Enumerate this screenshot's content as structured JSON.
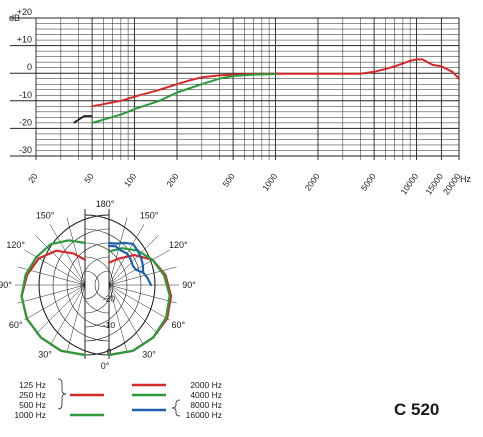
{
  "model": "C 520",
  "chart_data": [
    {
      "type": "line",
      "xscale": "log",
      "xlim": [
        20,
        20000
      ],
      "ylim": [
        -30,
        20
      ],
      "y_unit": "dB",
      "x_unit": "Hz",
      "x_tick_labels": [
        "20",
        "50",
        "100",
        "200",
        "500",
        "1000",
        "2000",
        "5000",
        "10000",
        "15000",
        "20000"
      ],
      "x_tick_values": [
        20,
        50,
        100,
        200,
        500,
        1000,
        2000,
        5000,
        10000,
        15000,
        20000
      ],
      "y_tick_labels": [
        "+20",
        "+10",
        "0",
        "-10",
        "-20",
        "-30"
      ],
      "y_tick_values": [
        20,
        10,
        0,
        -10,
        -20,
        -30
      ],
      "grid": true,
      "series": [
        {
          "color": "#d42a2a",
          "x": [
            50,
            80,
            100,
            150,
            200,
            250,
            300,
            400,
            500,
            700,
            1000,
            2000,
            3000,
            4000,
            5000,
            6000,
            7000,
            8000,
            9000,
            10000,
            11000,
            12000,
            13000,
            15000,
            18000,
            20000
          ],
          "y": [
            -12,
            -10,
            -8.5,
            -6,
            -4,
            -2.5,
            -1.5,
            -0.8,
            -0.5,
            -0.3,
            -0.2,
            -0.2,
            -0.2,
            -0.2,
            0.5,
            1.5,
            2.5,
            3.5,
            4.5,
            5,
            5,
            4,
            3,
            2.5,
            0.5,
            -2
          ]
        },
        {
          "color": "#2a9a3a",
          "x": [
            50,
            80,
            100,
            150,
            200,
            300,
            400,
            500,
            700,
            1000
          ],
          "y": [
            -18,
            -15,
            -13,
            -10,
            -7,
            -4,
            -2,
            -1,
            -0.5,
            -0.3
          ]
        }
      ],
      "annotation_marker": {
        "x": [
          37,
          44,
          50
        ],
        "y": [
          -18,
          -15.5,
          -15.5
        ],
        "color": "#1a1a1a"
      }
    },
    {
      "type": "polar",
      "angle_labels": [
        "180°",
        "150°",
        "120°",
        "90°",
        "60°",
        "30°",
        "0°"
      ],
      "angle_values": [
        180,
        150,
        120,
        90,
        60,
        30,
        0
      ],
      "radial_labels": [
        "-20",
        "-10",
        "0"
      ],
      "radial_values": [
        -20,
        -10,
        0
      ],
      "rlim": [
        -25,
        0
      ],
      "legend": [
        {
          "label": "125 Hz",
          "color": "#d42a2a",
          "group": "left"
        },
        {
          "label": "250 Hz",
          "color": "#d42a2a",
          "group": "left"
        },
        {
          "label": "500 Hz",
          "color": "#d42a2a",
          "group": "left"
        },
        {
          "label": "1000 Hz",
          "color": "#2a9a3a",
          "group": "left"
        },
        {
          "label": "2000 Hz",
          "color": "#d42a2a",
          "group": "right"
        },
        {
          "label": "4000 Hz",
          "color": "#2a9a3a",
          "group": "right"
        },
        {
          "label": "8000 Hz",
          "color": "#1f5fb0",
          "group": "right"
        },
        {
          "label": "16000 Hz",
          "color": "#1f5fb0",
          "group": "right"
        }
      ],
      "series": [
        {
          "side": "left",
          "color": "#d42a2a",
          "angle": [
            0,
            20,
            40,
            60,
            80,
            100,
            120,
            140,
            160,
            180
          ],
          "r": [
            0,
            0,
            -0.5,
            -1,
            -2,
            -4,
            -6,
            -9,
            -13,
            -16
          ]
        },
        {
          "side": "left",
          "color": "#2a9a3a",
          "angle": [
            0,
            20,
            40,
            60,
            80,
            100,
            120,
            140,
            160,
            180
          ],
          "r": [
            0,
            0,
            -0.5,
            -1,
            -2,
            -3.5,
            -5,
            -6,
            -8,
            -10
          ]
        },
        {
          "side": "right",
          "color": "#d42a2a",
          "angle": [
            0,
            20,
            40,
            60,
            80,
            100,
            120,
            140,
            160,
            180
          ],
          "r": [
            0,
            0,
            -0.5,
            -1,
            -2.5,
            -4.5,
            -7,
            -11,
            -15,
            -17
          ]
        },
        {
          "side": "right",
          "color": "#2a9a3a",
          "angle": [
            0,
            20,
            40,
            60,
            80,
            100,
            120,
            140,
            160,
            180
          ],
          "r": [
            0,
            0,
            -0.5,
            -1.5,
            -3,
            -5,
            -7,
            -9,
            -11,
            -13
          ]
        },
        {
          "side": "right",
          "color": "#1f5fb0",
          "angle": [
            90,
            100,
            110,
            120,
            130,
            140,
            150,
            160,
            170,
            180
          ],
          "r": [
            -10,
            -11,
            -12,
            -14,
            -14,
            -13,
            -12,
            -12,
            -11,
            -11
          ]
        },
        {
          "side": "right",
          "color": "#1f5fb0",
          "angle": [
            110,
            120,
            130,
            140,
            150,
            160,
            170,
            180
          ],
          "r": [
            -12,
            -11,
            -10,
            -9,
            -8,
            -9,
            -10,
            -10
          ]
        }
      ]
    }
  ]
}
